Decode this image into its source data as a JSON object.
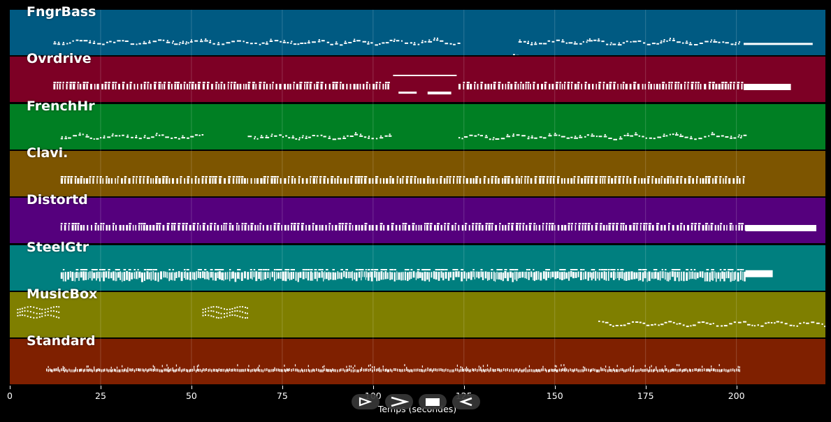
{
  "chart_data": {
    "type": "piano-roll",
    "xlabel": "Temps (secondes)",
    "xlim": [
      0,
      224.5
    ],
    "xticks": [
      0,
      25,
      50,
      75,
      100,
      125,
      150,
      175,
      200
    ],
    "grid": true,
    "tracks": [
      {
        "name": "FngrBass",
        "color": "#005A82",
        "style": "melody",
        "segments": [
          [
            12,
            123.5
          ],
          [
            140,
            201
          ]
        ],
        "extras": [
          [
            138.5,
            140,
            0.62
          ],
          [
            202,
            221,
            0.73,
            3
          ]
        ]
      },
      {
        "name": "Ovrdrive",
        "color": "#7D0025",
        "style": "chords",
        "segments": [
          [
            12,
            105
          ],
          [
            123.5,
            202
          ]
        ],
        "extras": [
          [
            105.5,
            123,
            0.4,
            2
          ],
          [
            107,
            112,
            0.77,
            3
          ],
          [
            115,
            121.5,
            0.77,
            4
          ],
          [
            202,
            215,
            0.6,
            9
          ]
        ]
      },
      {
        "name": "FrenchHr",
        "color": "#007F23",
        "style": "melody",
        "segments": [
          [
            14,
            53.5
          ],
          [
            65.5,
            105
          ],
          [
            123.5,
            202.5
          ]
        ]
      },
      {
        "name": "Clavi.",
        "color": "#7D5500",
        "style": "chords",
        "segments": [
          [
            14,
            202.5
          ]
        ]
      },
      {
        "name": "Distortd",
        "color": "#55007D",
        "style": "chords",
        "segments": [
          [
            14,
            202.5
          ]
        ],
        "extras": [
          [
            202.5,
            222,
            0.6,
            9
          ]
        ]
      },
      {
        "name": "SteelGtr",
        "color": "#007F7F",
        "style": "dense",
        "segments": [
          [
            14,
            202.5
          ]
        ],
        "extras": [
          [
            202.5,
            210,
            0.55,
            10
          ]
        ]
      },
      {
        "name": "MusicBox",
        "color": "#7F7F00",
        "style": "arp",
        "segments": [
          [
            2,
            13.5
          ],
          [
            53,
            65.5
          ]
        ],
        "extras": [
          [
            162,
            224.5,
            0.35,
            0
          ]
        ]
      },
      {
        "name": "Standard",
        "color": "#7F2000",
        "style": "drums",
        "segments": [
          [
            10,
            201
          ]
        ]
      }
    ]
  },
  "controls": [
    {
      "name": "prev-button",
      "icon": "step-back-icon"
    },
    {
      "name": "play-button",
      "icon": "play-icon"
    },
    {
      "name": "stop-button",
      "icon": "stop-icon"
    },
    {
      "name": "next-button",
      "icon": "step-forward-icon"
    }
  ]
}
